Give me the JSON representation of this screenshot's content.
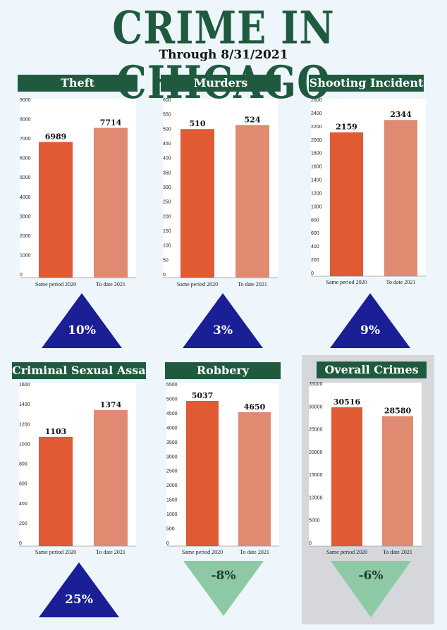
{
  "header": {
    "title": "CRIME IN CHICAGO",
    "subtitle": "Through 8/31/2021"
  },
  "colors": {
    "title": "#1f5a3f",
    "header_bg": "#1f5a3f",
    "bar_2020": "#e05a33",
    "bar_2021": "#e08a72",
    "increase": "#1a1f96",
    "decrease": "#8ec9a6"
  },
  "chart_data": [
    {
      "type": "bar",
      "title": "Theft",
      "categories": [
        "Same period 2020",
        "To date 2021"
      ],
      "values": [
        6989,
        7714
      ],
      "ylim": [
        0,
        9000
      ],
      "yticks": [
        0,
        1000,
        2000,
        3000,
        4000,
        5000,
        6000,
        7000,
        8000,
        9000
      ],
      "change": "10%",
      "direction": "up"
    },
    {
      "type": "bar",
      "title": "Murders",
      "categories": [
        "Same period 2020",
        "To date 2021"
      ],
      "values": [
        510,
        524
      ],
      "ylim": [
        0,
        600
      ],
      "yticks": [
        0,
        50,
        100,
        150,
        200,
        250,
        300,
        350,
        400,
        450,
        500,
        550,
        600
      ],
      "change": "3%",
      "direction": "up"
    },
    {
      "type": "bar",
      "title": "Shooting Incident",
      "categories": [
        "Same period 2020",
        "To date 2021"
      ],
      "values": [
        2159,
        2344
      ],
      "ylim": [
        0,
        2600
      ],
      "yticks": [
        0,
        200,
        400,
        600,
        800,
        1000,
        1200,
        1400,
        1600,
        1800,
        2000,
        2200,
        2400,
        2600
      ],
      "change": "9%",
      "direction": "up"
    },
    {
      "type": "bar",
      "title": "Criminal Sexual Assault",
      "categories": [
        "Same period 2020",
        "To date 2021"
      ],
      "values": [
        1103,
        1374
      ],
      "ylim": [
        0,
        1600
      ],
      "yticks": [
        0,
        200,
        400,
        600,
        800,
        1000,
        1200,
        1400,
        1600
      ],
      "change": "25%",
      "direction": "up"
    },
    {
      "type": "bar",
      "title": "Robbery",
      "categories": [
        "Same period 2020",
        "To date 2021"
      ],
      "values": [
        5037,
        4650
      ],
      "ylim": [
        0,
        5500
      ],
      "yticks": [
        0,
        500,
        1000,
        1500,
        2000,
        2500,
        3000,
        3500,
        4000,
        4500,
        5000,
        5500
      ],
      "change": "-8%",
      "direction": "down"
    },
    {
      "type": "bar",
      "title": "Overall Crimes",
      "categories": [
        "Same period 2020",
        "To date 2021"
      ],
      "values": [
        30516,
        28580
      ],
      "ylim": [
        0,
        35000
      ],
      "yticks": [
        0,
        5000,
        10000,
        15000,
        20000,
        25000,
        30000,
        35000
      ],
      "change": "-6%",
      "direction": "down"
    }
  ]
}
